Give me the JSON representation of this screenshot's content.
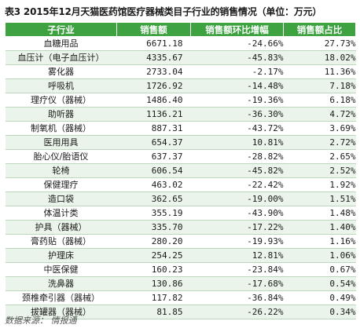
{
  "title": "表3  2015年12月天猫医药馆医疗器械类目子行业的销售情况（单位：万元）",
  "table": {
    "headers": [
      "子行业",
      "销售额",
      "销售额环比增幅",
      "销售额占比"
    ],
    "rows": [
      [
        "血糖用品",
        "6671.18",
        "-24.66%",
        "27.73%"
      ],
      [
        "血压计（电子血压计）",
        "4335.67",
        "-45.83%",
        "18.02%"
      ],
      [
        "雾化器",
        "2733.04",
        "-2.17%",
        "11.36%"
      ],
      [
        "呼吸机",
        "1726.92",
        "-14.48%",
        "7.18%"
      ],
      [
        "理疗仪（器械）",
        "1486.40",
        "-19.36%",
        "6.18%"
      ],
      [
        "助听器",
        "1136.21",
        "-36.30%",
        "4.72%"
      ],
      [
        "制氧机（器械）",
        "887.31",
        "-43.72%",
        "3.69%"
      ],
      [
        "医用用具",
        "654.37",
        "10.81%",
        "2.72%"
      ],
      [
        "胎心仪/胎语仪",
        "637.37",
        "-28.82%",
        "2.65%"
      ],
      [
        "轮椅",
        "606.54",
        "-45.82%",
        "2.52%"
      ],
      [
        "保健理疗",
        "463.02",
        "-22.42%",
        "1.92%"
      ],
      [
        "造口袋",
        "362.65",
        "-19.00%",
        "1.51%"
      ],
      [
        "体温计类",
        "355.19",
        "-43.90%",
        "1.48%"
      ],
      [
        "护具（器械）",
        "335.70",
        "-17.22%",
        "1.40%"
      ],
      [
        "膏药贴（器械）",
        "280.20",
        "-19.93%",
        "1.16%"
      ],
      [
        "护理床",
        "254.25",
        "12.81%",
        "1.06%"
      ],
      [
        "中医保健",
        "160.23",
        "-23.84%",
        "0.67%"
      ],
      [
        "洗鼻器",
        "130.86",
        "-17.68%",
        "0.54%"
      ],
      [
        "颈椎牵引器（器械）",
        "117.82",
        "-36.84%",
        "0.49%"
      ],
      [
        "拔罐器（器械）",
        "81.85",
        "-26.22%",
        "0.34%"
      ]
    ]
  },
  "source": "数据来源：  情报通",
  "colors": {
    "header_bg": "#3da23f",
    "row_alt": "#eaf4ea",
    "border": "#bcd8bc"
  }
}
